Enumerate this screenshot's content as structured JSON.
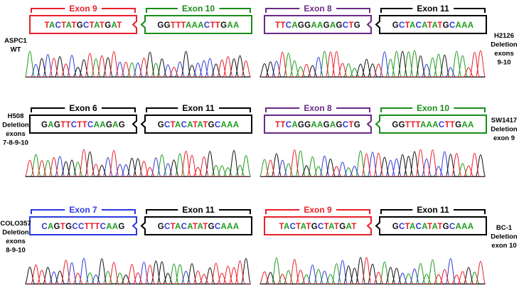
{
  "colors": {
    "exon_red": "#e8202a",
    "exon_green": "#1a8c1a",
    "exon_purple": "#6a2a86",
    "exon_blue": "#2a3ae0",
    "exon_black": "#000000",
    "base_A": "#1f9b1f",
    "base_C": "#2f3bd8",
    "base_G": "#111111",
    "base_T": "#e8202a"
  },
  "panels": [
    {
      "sample_lines": [
        "ASPC1",
        "WT"
      ],
      "sample_side": "left",
      "left_exon": {
        "label": "Exon 9",
        "color": "exon_red",
        "sequence": "TACTATGCTATGAT"
      },
      "right_exon": {
        "label": "Exon 10",
        "color": "exon_green",
        "sequence": "GGTTTAAACTTGAA"
      }
    },
    {
      "sample_lines": [
        "H2126",
        "Deletion",
        "exons",
        "9-10"
      ],
      "sample_side": "right",
      "left_exon": {
        "label": "Exon 8",
        "color": "exon_purple",
        "sequence": "TTCAGGAAGAGCTG"
      },
      "right_exon": {
        "label": "Exon 11",
        "color": "exon_black",
        "sequence": "GCTACATATGCAAA"
      }
    },
    {
      "sample_lines": [
        "H508",
        "Deletion",
        "exons",
        "7-8-9-10"
      ],
      "sample_side": "left",
      "left_exon": {
        "label": "Exon 6",
        "color": "exon_black",
        "sequence": "GAGTTCTTCAAGAG"
      },
      "right_exon": {
        "label": "Exon 11",
        "color": "exon_black",
        "sequence": "GCTACATATGCAAA"
      }
    },
    {
      "sample_lines": [
        "SW1417",
        "Deletion",
        "exon 9"
      ],
      "sample_side": "right",
      "left_exon": {
        "label": "Exon 8",
        "color": "exon_purple",
        "sequence": "TTCAGGAAGAGCTG"
      },
      "right_exon": {
        "label": "Exon 10",
        "color": "exon_green",
        "sequence": "GGTTTAAACTTGAA"
      }
    },
    {
      "sample_lines": [
        "COLO357",
        "Deletion",
        "exons",
        "8-9-10"
      ],
      "sample_side": "left",
      "left_exon": {
        "label": "Exon 7",
        "color": "exon_blue",
        "sequence": "CAGTGCCTTTCAAG"
      },
      "right_exon": {
        "label": "Exon 11",
        "color": "exon_black",
        "sequence": "GCTACATATGCAAA"
      }
    },
    {
      "sample_lines": [
        "BC-1",
        "Deletion",
        "exon 10"
      ],
      "sample_side": "right",
      "left_exon": {
        "label": "Exon 9",
        "color": "exon_red",
        "sequence": "TACTATGCTATGAT"
      },
      "right_exon": {
        "label": "Exon 11",
        "color": "exon_black",
        "sequence": "GCTACATATGCAAA"
      }
    }
  ]
}
